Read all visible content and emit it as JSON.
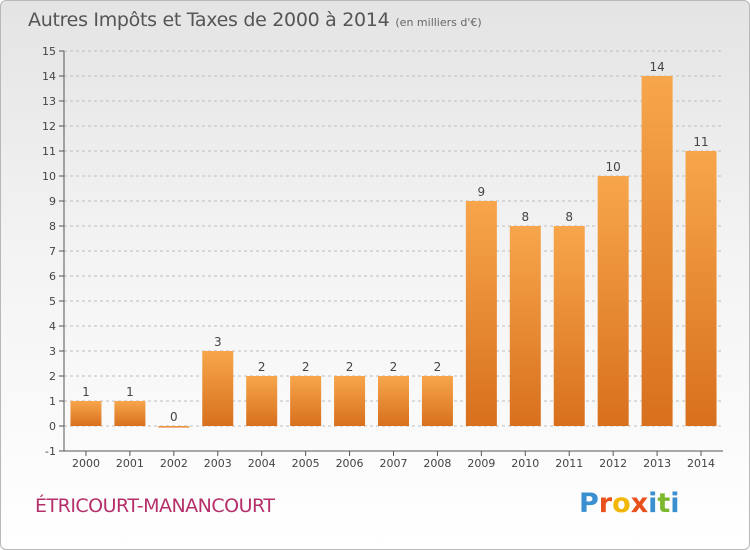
{
  "header": {
    "title": "Autres Impôts et Taxes de 2000 à 2014",
    "unit": "(en milliers d'€)"
  },
  "footer": {
    "commune": "ÉTRICOURT-MANANCOURT",
    "brand": "Proxiti",
    "brand_letters": [
      {
        "ch": "P",
        "color": "#3a8fd0"
      },
      {
        "ch": "r",
        "color": "#e8501c"
      },
      {
        "ch": "o",
        "color": "#f2b705"
      },
      {
        "ch": "x",
        "color": "#e8501c"
      },
      {
        "ch": "i",
        "color": "#3a8fd0"
      },
      {
        "ch": "t",
        "color": "#7cb82f"
      },
      {
        "ch": "i",
        "color": "#3a8fd0"
      }
    ]
  },
  "colors": {
    "bar_top": "#f7a64c",
    "bar_bottom": "#d8701e",
    "axis": "#555555",
    "grid": "#bdbdbd",
    "text": "#444444"
  },
  "chart_data": {
    "type": "bar",
    "title": "Autres Impôts et Taxes de 2000 à 2014",
    "subtitle": "(en milliers d'€)",
    "xlabel": "",
    "ylabel": "",
    "categories": [
      "2000",
      "2001",
      "2002",
      "2003",
      "2004",
      "2005",
      "2006",
      "2007",
      "2008",
      "2009",
      "2010",
      "2011",
      "2012",
      "2013",
      "2014"
    ],
    "values": [
      1,
      1,
      0,
      3,
      2,
      2,
      2,
      2,
      2,
      9,
      8,
      8,
      10,
      14,
      11
    ],
    "ylim": [
      -1,
      15
    ],
    "yticks": [
      -1,
      0,
      1,
      2,
      3,
      4,
      5,
      6,
      7,
      8,
      9,
      10,
      11,
      12,
      13,
      14,
      15
    ],
    "grid": true,
    "data_labels": true,
    "legend": "none"
  }
}
